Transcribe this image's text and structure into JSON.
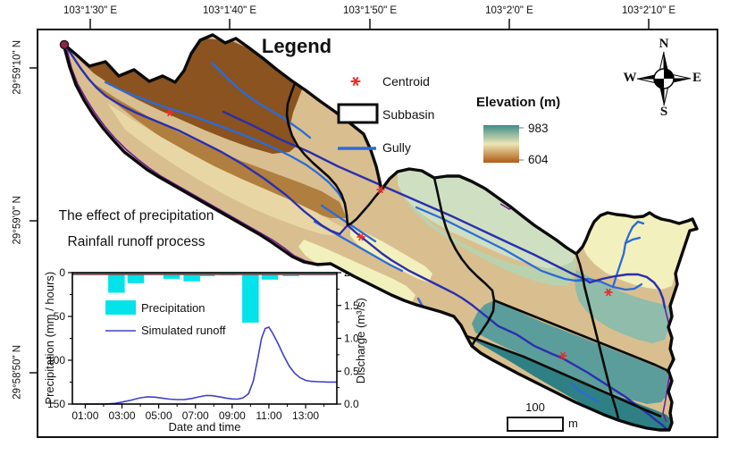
{
  "map": {
    "axes": {
      "top": [
        "103°1'30\" E",
        "103°1'40\" E",
        "103°1'50\" E",
        "103°2'0\" E",
        "103°2'10\" E"
      ],
      "left": [
        "29°59'10\" N",
        "29°59'0\" N",
        "29°58'50\" N"
      ]
    },
    "legend": {
      "title": "Legend",
      "items": [
        {
          "label": "Centroid",
          "symbol": "centroid-star"
        },
        {
          "label": "Subbasin",
          "symbol": "subbasin-outline"
        },
        {
          "label": "Gully",
          "symbol": "gully-line"
        }
      ]
    },
    "elevation_legend": {
      "title": "Elevation (m)",
      "max": "983",
      "min": "604"
    },
    "compass": {
      "north": "N",
      "east": "E",
      "south": "S",
      "west": "W"
    },
    "annotations": [
      "The effect of precipitation",
      "Rainfall runoff process"
    ],
    "scale_bar": {
      "value": "100",
      "unit": "m"
    },
    "colors": {
      "gully": "#2b6bd9",
      "channel": "#2a2fae",
      "stream_purple": "#6e1f96",
      "centroid": "#e8312a",
      "boundary": "#0b0b0b",
      "elevation_high": "#3e8d8b",
      "elevation_mid": "#ece6b4",
      "elevation_low": "#b05a14",
      "zones": [
        "#8a531f",
        "#b07e3f",
        "#d9bf8f",
        "#e8d7a4",
        "#f2f0bd",
        "#cfe0c2",
        "#b9d2ae",
        "#8fbcab",
        "#5b9d9b",
        "#2f8084"
      ]
    }
  },
  "chart_data": {
    "type": "bar+line",
    "xlabel": "Date and time",
    "x_range": [
      0.3,
      14.7
    ],
    "x_tick_hours": [
      1,
      3,
      5,
      7,
      9,
      11,
      13
    ],
    "x_tick_labels": [
      "01:00",
      "03:00",
      "05:00",
      "07:00",
      "09:00",
      "11:00",
      "13:00"
    ],
    "left_axis": {
      "label": "Precipitation (mm / hours)",
      "range": [
        0,
        150
      ],
      "inverted": true,
      "ticks": [
        0,
        50,
        100,
        150
      ],
      "minor_ticks": [
        25,
        75,
        125
      ]
    },
    "right_axis": {
      "label": "Discharge (m³/s)",
      "range": [
        0,
        2
      ],
      "ticks": [
        "2.0",
        "1.5",
        "1.0",
        "0.5",
        "0.0"
      ],
      "tick_values": [
        2,
        1.5,
        1,
        0.5,
        0
      ],
      "minor_ticks": [
        0.25,
        0.75,
        1.25,
        1.75
      ]
    },
    "baseline_color": "#8b3535",
    "legend_position": "inside-left",
    "series": [
      {
        "name": "Precipitation",
        "type": "bar",
        "axis": "left",
        "color": "#04e3e9",
        "bar_width_hours": 0.9,
        "points": [
          [
            2.7,
            23
          ],
          [
            3.75,
            12
          ],
          [
            5.7,
            7
          ],
          [
            6.8,
            10
          ],
          [
            7.6,
            4
          ],
          [
            8.8,
            3
          ],
          [
            10.0,
            57
          ],
          [
            11.05,
            8
          ],
          [
            12.2,
            4
          ],
          [
            13.2,
            3
          ],
          [
            14.1,
            3
          ]
        ]
      },
      {
        "name": "Simulated runoff",
        "type": "line",
        "axis": "right",
        "color": "#4040c8",
        "points": [
          [
            1,
            0
          ],
          [
            2,
            0
          ],
          [
            2.6,
            0.01
          ],
          [
            3,
            0.03
          ],
          [
            3.5,
            0.06
          ],
          [
            4,
            0.095
          ],
          [
            4.4,
            0.11
          ],
          [
            4.8,
            0.105
          ],
          [
            5.2,
            0.09
          ],
          [
            5.6,
            0.075
          ],
          [
            6,
            0.068
          ],
          [
            6.4,
            0.07
          ],
          [
            6.8,
            0.085
          ],
          [
            7.2,
            0.11
          ],
          [
            7.6,
            0.13
          ],
          [
            7.9,
            0.128
          ],
          [
            8.3,
            0.11
          ],
          [
            8.7,
            0.09
          ],
          [
            9,
            0.078
          ],
          [
            9.3,
            0.075
          ],
          [
            9.6,
            0.095
          ],
          [
            9.9,
            0.16
          ],
          [
            10.15,
            0.35
          ],
          [
            10.4,
            0.7
          ],
          [
            10.6,
            1.0
          ],
          [
            10.8,
            1.15
          ],
          [
            11,
            1.17
          ],
          [
            11.2,
            1.08
          ],
          [
            11.5,
            0.92
          ],
          [
            11.8,
            0.74
          ],
          [
            12.1,
            0.58
          ],
          [
            12.4,
            0.47
          ],
          [
            12.7,
            0.4
          ],
          [
            13,
            0.36
          ],
          [
            13.3,
            0.345
          ],
          [
            13.7,
            0.34
          ],
          [
            14.2,
            0.335
          ],
          [
            14.7,
            0.335
          ]
        ]
      }
    ]
  }
}
